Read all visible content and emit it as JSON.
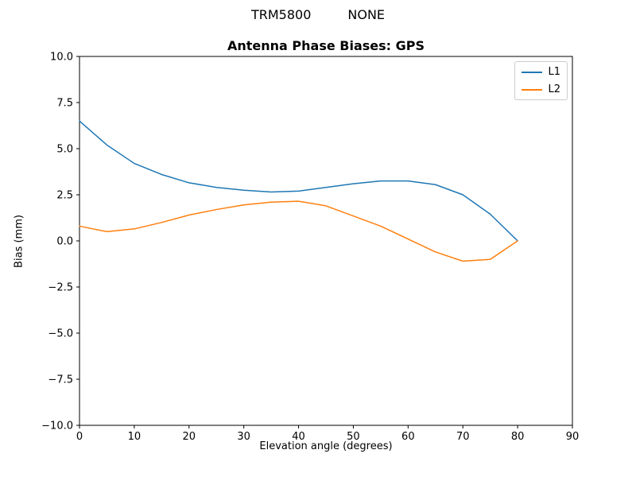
{
  "header": {
    "antenna": "TRM5800",
    "radome": "NONE"
  },
  "chart_data": {
    "type": "line",
    "title": "Antenna Phase Biases: GPS",
    "xlabel": "Elevation angle (degrees)",
    "ylabel": "Bias (mm)",
    "xlim": [
      0,
      90
    ],
    "ylim": [
      -10,
      10
    ],
    "xticks": [
      0,
      10,
      20,
      30,
      40,
      50,
      60,
      70,
      80,
      90
    ],
    "yticks": [
      10.0,
      7.5,
      5.0,
      2.5,
      0.0,
      -2.5,
      -5.0,
      -7.5,
      -10.0
    ],
    "grid": false,
    "legend_position": "upper right",
    "x": [
      0,
      5,
      10,
      15,
      20,
      25,
      30,
      35,
      40,
      45,
      50,
      55,
      60,
      65,
      70,
      75,
      80
    ],
    "series": [
      {
        "name": "L1",
        "color": "#1f77b4",
        "values": [
          6.5,
          5.2,
          4.2,
          3.6,
          3.15,
          2.9,
          2.75,
          2.65,
          2.7,
          2.9,
          3.1,
          3.25,
          3.25,
          3.05,
          2.5,
          1.45,
          0.0
        ]
      },
      {
        "name": "L2",
        "color": "#ff7f0e",
        "values": [
          0.8,
          0.5,
          0.65,
          1.0,
          1.4,
          1.7,
          1.95,
          2.1,
          2.15,
          1.9,
          1.35,
          0.8,
          0.1,
          -0.6,
          -1.1,
          -1.0,
          0.0
        ]
      }
    ]
  }
}
